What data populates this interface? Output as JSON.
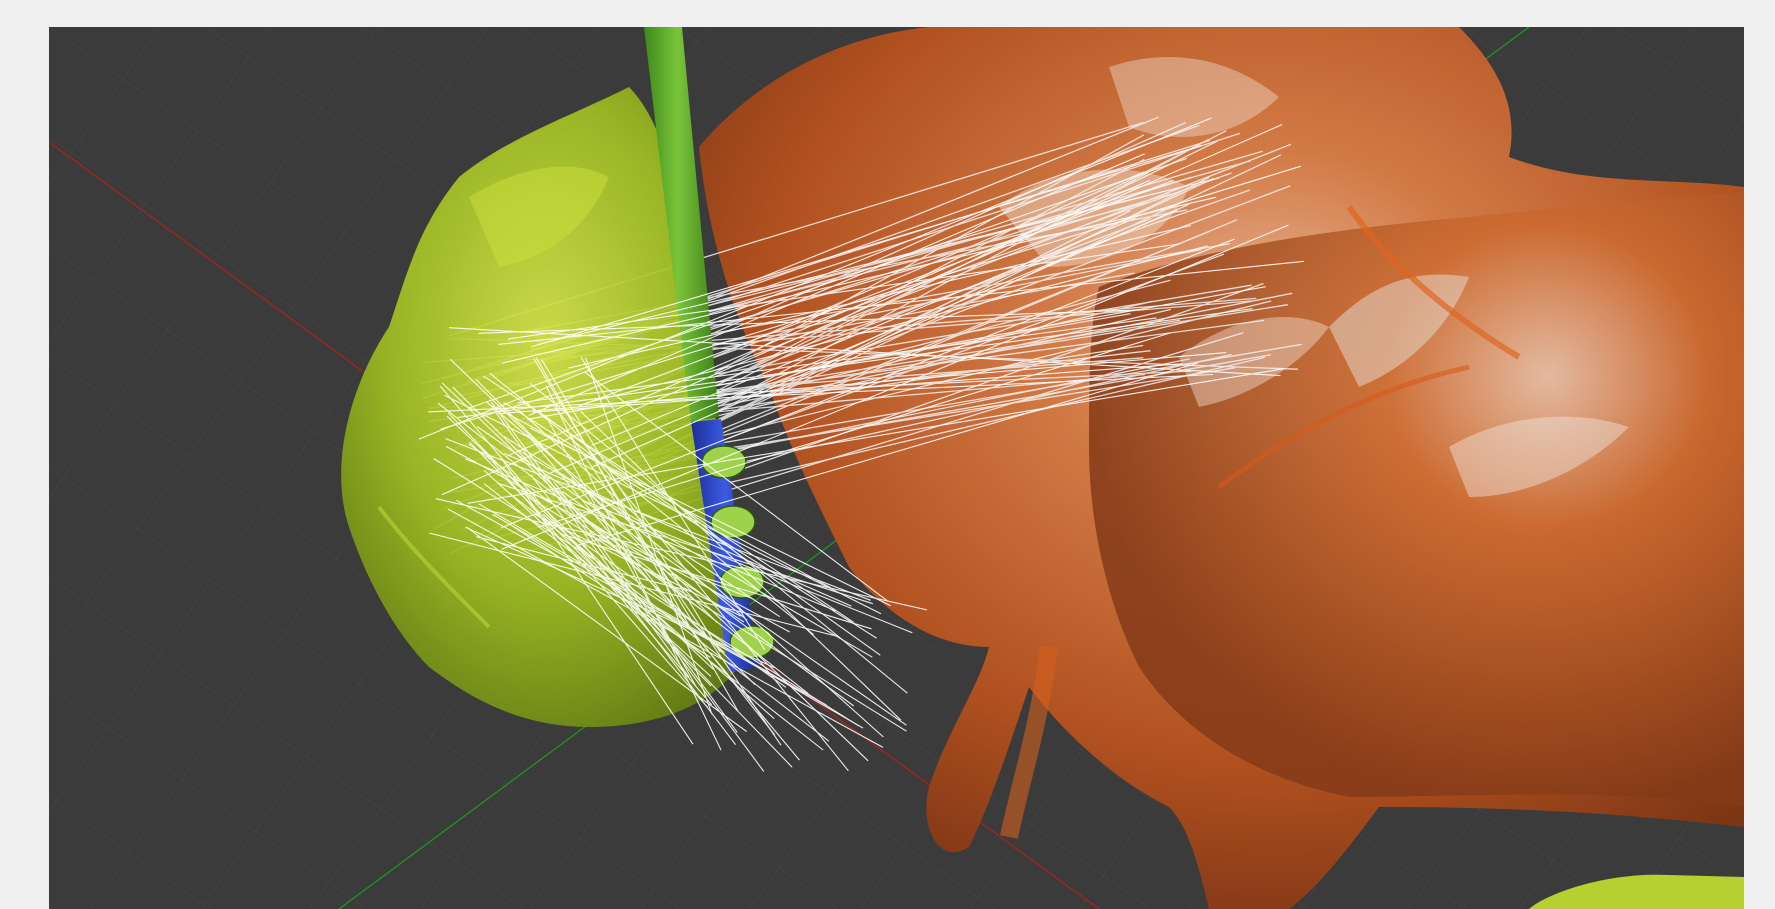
{
  "scene": {
    "background_color": "#3b3b3b",
    "page_background_color": "#f0f0f0",
    "grid": true,
    "axes": {
      "x_color": "#b02020",
      "y_color": "#1f9a1f"
    },
    "objects": [
      {
        "name": "green-surface",
        "color": "#a6c52a"
      },
      {
        "name": "orange-surface",
        "color": "#c25a22"
      },
      {
        "name": "lead-shaft",
        "color": "#5aa82a"
      },
      {
        "name": "lead-contacts",
        "color": "#2b45c8",
        "count": 4
      },
      {
        "name": "fiber-tracts",
        "color": "#f2f2f2"
      }
    ]
  }
}
